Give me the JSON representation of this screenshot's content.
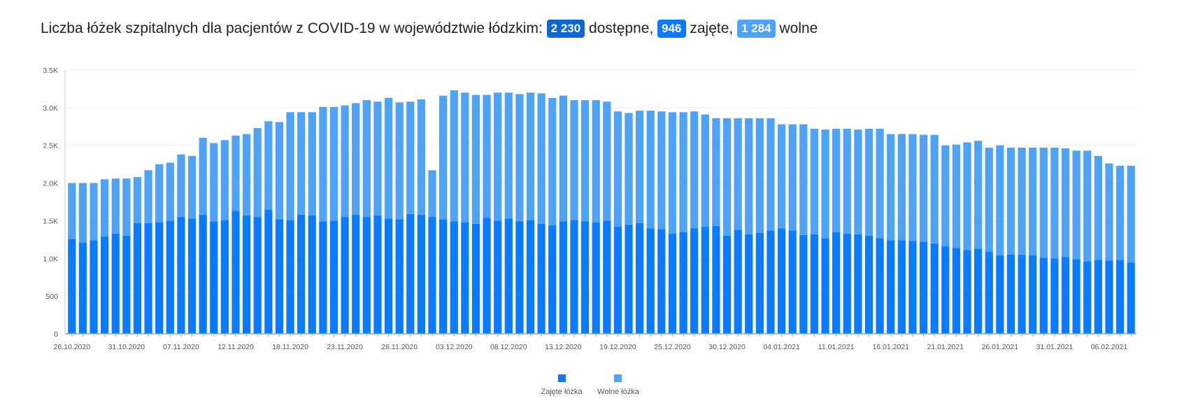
{
  "header": {
    "title_prefix": "Liczba łóżek szpitalnych dla pacjentów z COVID-19 w województwie łódzkim:",
    "available_value": "2 230",
    "available_label": "dostępne,",
    "occupied_value": "946",
    "occupied_label": "zajęte,",
    "free_value": "1 284",
    "free_label": "wolne"
  },
  "colors": {
    "occupied": "#0a7bff",
    "free": "#4fa3f7",
    "available_badge": "#0d67d4"
  },
  "chart_data": {
    "type": "bar",
    "stacked": true,
    "ylim": [
      0,
      3500
    ],
    "y_ticks": [
      {
        "value": 0,
        "label": "0"
      },
      {
        "value": 500,
        "label": "500"
      },
      {
        "value": 1000,
        "label": "1.0K"
      },
      {
        "value": 1500,
        "label": "1.5K"
      },
      {
        "value": 2000,
        "label": "2.0K"
      },
      {
        "value": 2500,
        "label": "2.5K"
      },
      {
        "value": 3000,
        "label": "3.0K"
      },
      {
        "value": 3500,
        "label": "3.5K"
      }
    ],
    "x_tick_labels": [
      "26.10.2020",
      "31.10.2020",
      "07.11.2020",
      "12.11.2020",
      "18.11.2020",
      "23.11.2020",
      "28.11.2020",
      "03.12.2020",
      "08.12.2020",
      "13.12.2020",
      "19.12.2020",
      "25.12.2020",
      "30.12.2020",
      "04.01.2021",
      "11.01.2021",
      "16.01.2021",
      "21.01.2021",
      "26.01.2021",
      "31.01.2021",
      "06.02.2021"
    ],
    "x_tick_indices": [
      0,
      5,
      10,
      15,
      20,
      25,
      30,
      35,
      40,
      45,
      50,
      55,
      60,
      65,
      70,
      75,
      80,
      85,
      90,
      95
    ],
    "legend_position": "bottom",
    "series": [
      {
        "name": "Zajęte łóżka",
        "color": "#0a7bff",
        "values": [
          1260,
          1210,
          1240,
          1290,
          1330,
          1300,
          1470,
          1470,
          1480,
          1500,
          1550,
          1530,
          1580,
          1490,
          1510,
          1630,
          1570,
          1550,
          1650,
          1520,
          1510,
          1580,
          1570,
          1490,
          1500,
          1550,
          1580,
          1550,
          1570,
          1530,
          1520,
          1590,
          1580,
          1550,
          1520,
          1490,
          1480,
          1460,
          1540,
          1500,
          1530,
          1490,
          1510,
          1460,
          1440,
          1490,
          1510,
          1490,
          1480,
          1500,
          1420,
          1450,
          1470,
          1400,
          1390,
          1330,
          1350,
          1400,
          1420,
          1430,
          1300,
          1380,
          1320,
          1340,
          1370,
          1400,
          1370,
          1310,
          1320,
          1270,
          1350,
          1330,
          1320,
          1300,
          1270,
          1240,
          1240,
          1230,
          1220,
          1200,
          1160,
          1140,
          1110,
          1130,
          1090,
          1040,
          1050,
          1050,
          1040,
          1010,
          1000,
          1020,
          990,
          960,
          980,
          970,
          980,
          946
        ]
      },
      {
        "name": "Wolne łóżka",
        "color": "#4fa3f7",
        "values": [
          740,
          790,
          760,
          760,
          730,
          760,
          610,
          700,
          770,
          770,
          830,
          830,
          1020,
          1040,
          1060,
          1000,
          1080,
          1180,
          1170,
          1290,
          1430,
          1360,
          1370,
          1520,
          1510,
          1480,
          1480,
          1550,
          1510,
          1600,
          1550,
          1490,
          1530,
          620,
          1640,
          1740,
          1720,
          1710,
          1630,
          1700,
          1670,
          1690,
          1690,
          1730,
          1690,
          1670,
          1590,
          1610,
          1620,
          1580,
          1530,
          1480,
          1490,
          1560,
          1560,
          1610,
          1590,
          1550,
          1490,
          1430,
          1560,
          1480,
          1540,
          1520,
          1490,
          1380,
          1410,
          1470,
          1400,
          1440,
          1370,
          1390,
          1390,
          1420,
          1450,
          1410,
          1410,
          1420,
          1420,
          1440,
          1340,
          1370,
          1430,
          1430,
          1380,
          1460,
          1420,
          1420,
          1430,
          1460,
          1470,
          1440,
          1440,
          1470,
          1380,
          1290,
          1250,
          1284
        ]
      }
    ]
  },
  "legend": {
    "occupied": "Zajęte łóżka",
    "free": "Wolne łóżka"
  }
}
